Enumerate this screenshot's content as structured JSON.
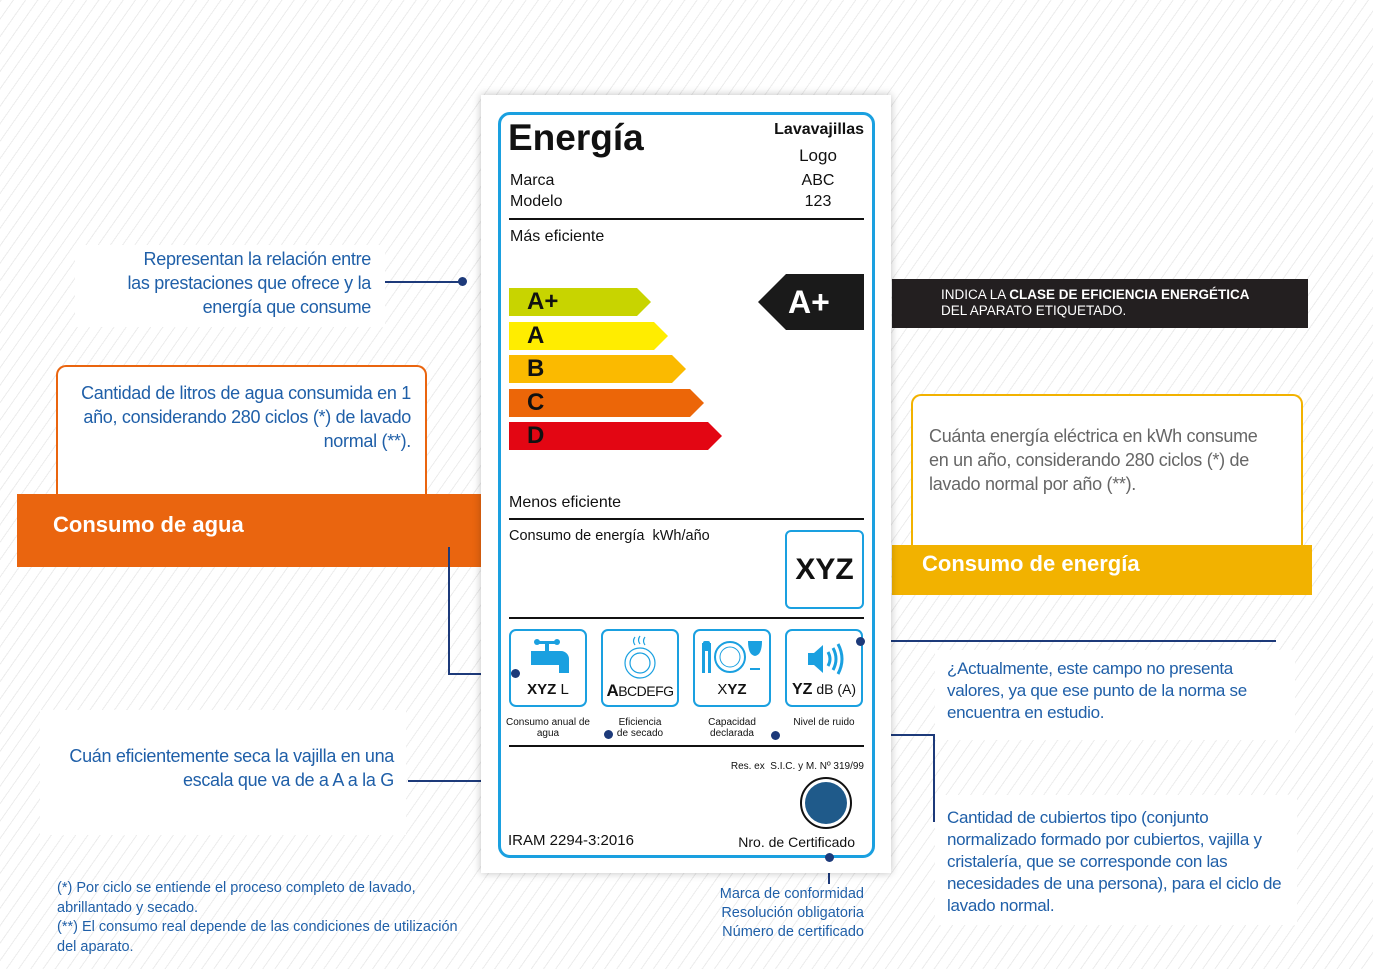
{
  "label": {
    "title": "Energía",
    "appliance": "Lavavajillas",
    "logo": "Logo",
    "brand_label": "Marca",
    "brand_value": "ABC",
    "model_label": "Modelo",
    "model_value": "123",
    "more_efficient": "Más eficiente",
    "less_efficient": "Menos eficiente",
    "classes": [
      {
        "name": "A+",
        "color": "#c8d400"
      },
      {
        "name": "A",
        "color": "#ffed00"
      },
      {
        "name": "B",
        "color": "#fbba00"
      },
      {
        "name": "C",
        "color": "#ec6608"
      },
      {
        "name": "D",
        "color": "#e30613"
      }
    ],
    "rating": "A+",
    "energy_consumption_label": "Consumo de energía  kWh/año",
    "energy_value": "XYZ",
    "icons": [
      {
        "icon": "water-tap-icon",
        "value_bold": "XYZ",
        "value_rest": " L",
        "caption": "Consumo anual de agua"
      },
      {
        "icon": "drying-plate-icon",
        "value_bold": "A",
        "value_rest": "BCDEFG",
        "caption": "Eficiencia de secado"
      },
      {
        "icon": "tableware-icon",
        "value_bold": "YZ",
        "value_pre": "X",
        "value_rest": "",
        "caption": "Capacidad declarada"
      },
      {
        "icon": "speaker-icon",
        "value_bold": "YZ",
        "value_rest": " dB (A)",
        "caption": "Nivel de ruido"
      }
    ],
    "resolution": "Res. ex  S.I.C. y M. Nº 319/99",
    "iram_logo": "IRAM",
    "standard": "IRAM 2294-3:2016",
    "certificate": "Nro. de Certificado"
  },
  "annotations": {
    "efficiency_relation": "Representan la relación entre las prestaciones que ofrece y la energía que consume",
    "rating_banner_normal": "INDICA LA ",
    "rating_banner_bold": "CLASE DE EFICIENCIA ENERGÉTICA",
    "rating_banner_rest": "DEL APARATO ETIQUETADO.",
    "water_text": "Cantidad de litros de agua consumida en 1 año, considerando 280 ciclos (*) de lavado normal (**).",
    "water_title": "Consumo de agua",
    "energy_text": "Cuánta energía eléctrica en kWh consume en un año, considerando 280 ciclos (*) de lavado normal por año (**).",
    "energy_title": "Consumo de energía",
    "noise_text": "¿Actualmente, este campo no presenta valores, ya que ese punto de la norma se encuentra en estudio.",
    "drying_text": "Cuán eficientemente seca la vajilla en una escala que va de a A a la G",
    "capacity_text": "Cantidad de cubiertos tipo (conjunto normalizado formado por cubiertos, vajilla y cristalería, que se corresponde con las necesidades de una persona), para el ciclo de lavado normal.",
    "footnote1": "(*) Por ciclo se entiende el proceso completo de lavado, abrillantado y secado.",
    "footnote2": "(**) El consumo real depende de las condiciones de utilización del aparato.",
    "mark_lines": [
      "Marca de conformidad",
      "Resolución obligatoria",
      "Número de certificado"
    ]
  },
  "colors": {
    "orange": "#ea650f",
    "yellow": "#f2b200",
    "blue_text": "#1f5fa8",
    "label_border": "#1aa0e0",
    "navy": "#1d3a7a"
  }
}
